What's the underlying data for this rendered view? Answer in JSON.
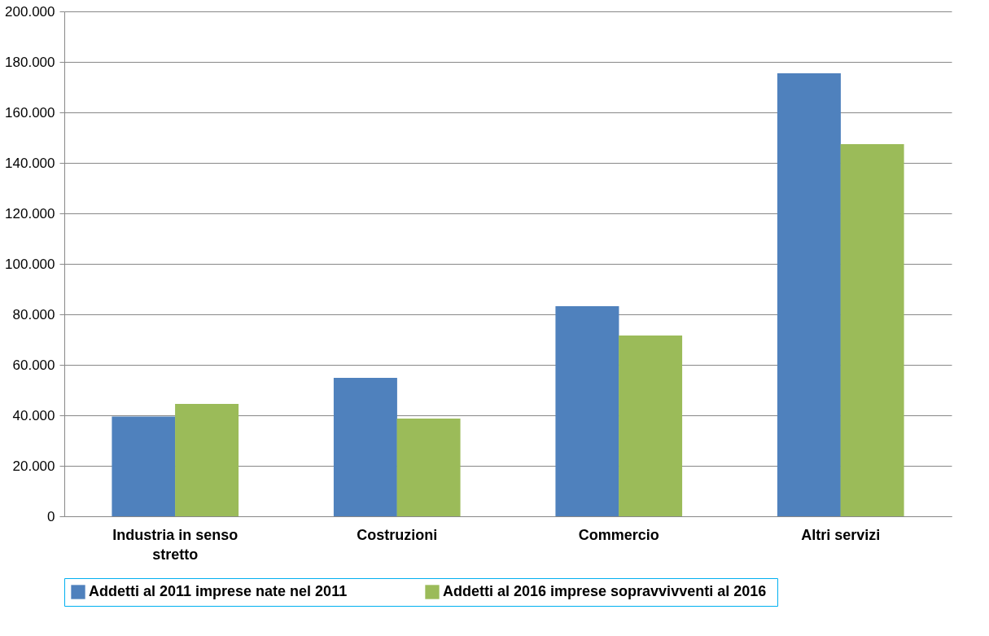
{
  "chart_data": {
    "type": "bar",
    "categories": [
      "Industria in senso stretto",
      "Costruzioni",
      "Commercio",
      "Altri servizi"
    ],
    "series": [
      {
        "name": "Addetti al 2011  imprese nate nel 2011",
        "color": "#4f81bd",
        "values": [
          39500,
          54800,
          83200,
          175500
        ]
      },
      {
        "name": "Addetti al 2016  imprese sopravvivventi al 2016",
        "color": "#9bbb59",
        "values": [
          44500,
          38700,
          71600,
          147400
        ]
      }
    ],
    "ylim": [
      0,
      200000
    ],
    "yticks": [
      {
        "value": 0,
        "label": "0"
      },
      {
        "value": 20000,
        "label": "20.000"
      },
      {
        "value": 40000,
        "label": "40.000"
      },
      {
        "value": 60000,
        "label": "60.000"
      },
      {
        "value": 80000,
        "label": "80.000"
      },
      {
        "value": 100000,
        "label": "100.000"
      },
      {
        "value": 120000,
        "label": "120.000"
      },
      {
        "value": 140000,
        "label": "140.000"
      },
      {
        "value": 160000,
        "label": "160.000"
      },
      {
        "value": 180000,
        "label": "180.000"
      },
      {
        "value": 200000,
        "label": "200.000"
      }
    ],
    "grid": "y",
    "legend": "bottom"
  }
}
